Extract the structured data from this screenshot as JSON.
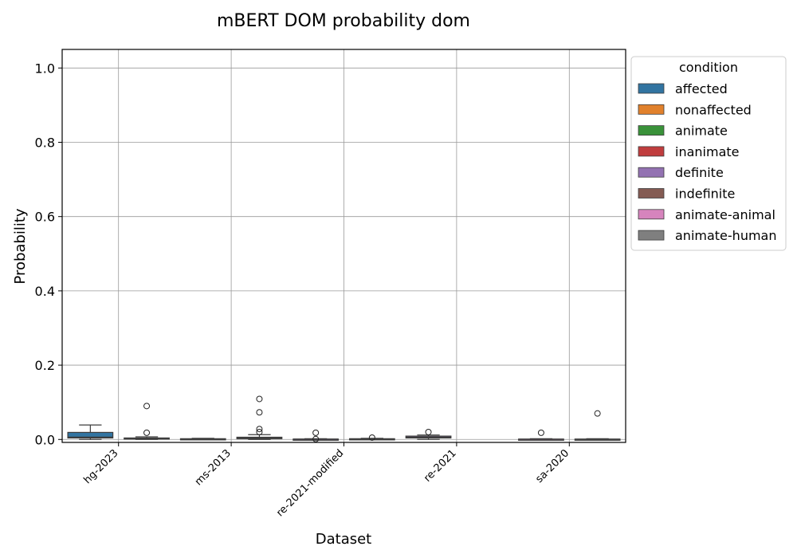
{
  "chart_data": {
    "type": "box",
    "title": "mBERT DOM probability dom",
    "xlabel": "Dataset",
    "ylabel": "Probability",
    "ylim": [
      -0.008,
      1.05
    ],
    "yticks": [
      0.0,
      0.2,
      0.4,
      0.6,
      0.8,
      1.0
    ],
    "ytick_labels": [
      "0.0",
      "0.2",
      "0.4",
      "0.6",
      "0.8",
      "1.0"
    ],
    "grid": true,
    "categories": [
      "hg-2023",
      "ms-2013",
      "re-2021-modified",
      "re-2021",
      "sa-2020"
    ],
    "legend": {
      "title": "condition",
      "placement": "outside-right",
      "entries": [
        {
          "label": "affected",
          "color": "#3274a1"
        },
        {
          "label": "nonaffected",
          "color": "#e1812c"
        },
        {
          "label": "animate",
          "color": "#3a923a"
        },
        {
          "label": "inanimate",
          "color": "#c03d3e"
        },
        {
          "label": "definite",
          "color": "#9372b2"
        },
        {
          "label": "indefinite",
          "color": "#845b53"
        },
        {
          "label": "animate-animal",
          "color": "#d684bd"
        },
        {
          "label": "animate-human",
          "color": "#7f7f7f"
        }
      ]
    },
    "boxes": [
      {
        "category": "hg-2023",
        "condition": "affected",
        "color": "#3274a1",
        "whisker_low": 0.0,
        "q1": 0.004,
        "median": 0.006,
        "q3": 0.019,
        "whisker_high": 0.039,
        "outliers": []
      },
      {
        "category": "hg-2023",
        "condition": "nonaffected",
        "color": "#e1812c",
        "whisker_low": 0.0,
        "q1": 0.001,
        "median": 0.002,
        "q3": 0.004,
        "whisker_high": 0.007,
        "outliers": [
          0.018,
          0.09
        ]
      },
      {
        "category": "ms-2013",
        "condition": "animate",
        "color": "#3a923a",
        "whisker_low": 0.0,
        "q1": 0.0005,
        "median": 0.001,
        "q3": 0.002,
        "whisker_high": 0.003,
        "outliers": []
      },
      {
        "category": "ms-2013",
        "condition": "inanimate",
        "color": "#c03d3e",
        "whisker_low": 0.0,
        "q1": 0.002,
        "median": 0.004,
        "q3": 0.006,
        "whisker_high": 0.013,
        "outliers": [
          0.02,
          0.028,
          0.073,
          0.109
        ]
      },
      {
        "category": "re-2021-modified",
        "condition": "definite",
        "color": "#9372b2",
        "whisker_low": 0.0,
        "q1": 0.0003,
        "median": 0.0006,
        "q3": 0.001,
        "whisker_high": 0.002,
        "outliers": [
          0.001,
          0.018
        ]
      },
      {
        "category": "re-2021-modified",
        "condition": "indefinite",
        "color": "#845b53",
        "whisker_low": 0.0,
        "q1": 0.0005,
        "median": 0.001,
        "q3": 0.002,
        "whisker_high": 0.003,
        "outliers": [
          0.005
        ]
      },
      {
        "category": "re-2021",
        "condition": "definite",
        "color": "#9372b2",
        "whisker_low": 0.0,
        "q1": 0.004,
        "median": 0.006,
        "q3": 0.009,
        "whisker_high": 0.012,
        "outliers": [
          0.02
        ]
      },
      {
        "category": "sa-2020",
        "condition": "animate-animal",
        "color": "#d684bd",
        "whisker_low": 0.0,
        "q1": 0.0002,
        "median": 0.0005,
        "q3": 0.001,
        "whisker_high": 0.002,
        "outliers": [
          0.018
        ]
      },
      {
        "category": "sa-2020",
        "condition": "animate-human",
        "color": "#7f7f7f",
        "whisker_low": 0.0,
        "q1": 0.0002,
        "median": 0.0005,
        "q3": 0.001,
        "whisker_high": 0.002,
        "outliers": [
          0.07
        ]
      }
    ]
  }
}
